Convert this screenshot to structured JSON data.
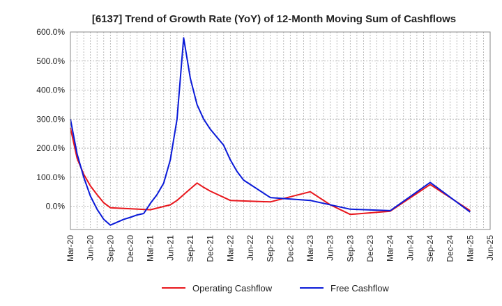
{
  "chart_data": {
    "type": "line",
    "title": "[6137]  Trend of Growth Rate (YoY) of 12-Month Moving Sum of Cashflows",
    "xlabel": "",
    "ylabel": "",
    "ylim": [
      -80,
      600
    ],
    "yticks": [
      0,
      100,
      200,
      300,
      400,
      500,
      600
    ],
    "ytick_labels": [
      "0.0%",
      "100.0%",
      "200.0%",
      "300.0%",
      "400.0%",
      "500.0%",
      "600.0%"
    ],
    "xtick_labels": [
      "Mar-20",
      "Jun-20",
      "Sep-20",
      "Dec-20",
      "Mar-21",
      "Jun-21",
      "Sep-21",
      "Dec-21",
      "Mar-22",
      "Jun-22",
      "Sep-22",
      "Dec-22",
      "Mar-23",
      "Jun-23",
      "Sep-23",
      "Dec-23",
      "Mar-24",
      "Jun-24",
      "Sep-24",
      "Dec-24",
      "Mar-25",
      "Jun-25"
    ],
    "grid": true,
    "legend_position": "bottom",
    "series": [
      {
        "name": "Operating Cashflow",
        "color": "#e8161c",
        "values": [
          270,
          165,
          110,
          70,
          40,
          12,
          -5,
          null,
          null,
          null,
          null,
          null,
          -12,
          null,
          null,
          5,
          20,
          40,
          60,
          80,
          65,
          52,
          null,
          null,
          20,
          null,
          null,
          null,
          null,
          null,
          15,
          null,
          null,
          null,
          null,
          null,
          50,
          null,
          null,
          5,
          null,
          null,
          -28,
          null,
          null,
          null,
          null,
          null,
          -17,
          null,
          null,
          null,
          null,
          null,
          75,
          null,
          null,
          null,
          null,
          null,
          -15
        ]
      },
      {
        "name": "Free Cashflow",
        "color": "#0a1ad8",
        "values": [
          300,
          180,
          100,
          35,
          -10,
          -45,
          -65,
          -55,
          -45,
          -38,
          -30,
          -25,
          10,
          40,
          80,
          160,
          300,
          580,
          440,
          350,
          300,
          265,
          null,
          210,
          160,
          120,
          90,
          null,
          null,
          null,
          30,
          null,
          null,
          null,
          null,
          null,
          20,
          null,
          null,
          null,
          null,
          null,
          -10,
          null,
          null,
          null,
          null,
          null,
          -15,
          null,
          null,
          null,
          null,
          null,
          82,
          null,
          null,
          null,
          null,
          null,
          -20
        ]
      }
    ]
  }
}
